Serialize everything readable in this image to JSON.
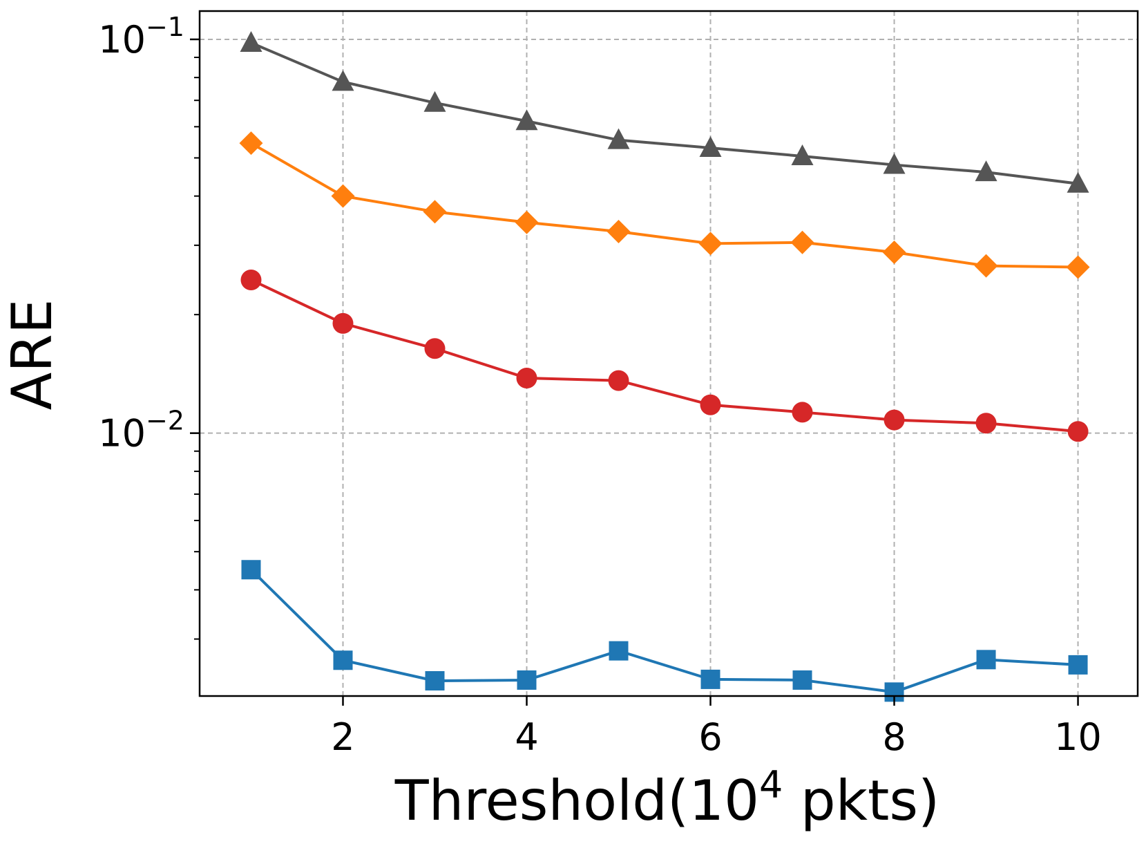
{
  "chart_data": {
    "type": "line",
    "title": "",
    "xlabel": "Threshold(10",
    "xlabel_exponent": "4",
    "xlabel_suffix": " pkts)",
    "ylabel": "ARE",
    "yscale": "log",
    "xlim": [
      0.44,
      10.65
    ],
    "ylim": [
      0.00215,
      0.118
    ],
    "grid": true,
    "x": [
      1,
      2,
      3,
      4,
      5,
      6,
      7,
      8,
      9,
      10
    ],
    "x_ticks": [
      2,
      4,
      6,
      8,
      10
    ],
    "x_tick_labels": [
      "2",
      "4",
      "6",
      "8",
      "10"
    ],
    "y_major_ticks": [
      0.01,
      0.1
    ],
    "y_tick_labels": [
      {
        "value": 0.1,
        "base": "10",
        "exponent": "−1"
      },
      {
        "value": 0.01,
        "base": "10",
        "exponent": "−2"
      }
    ],
    "y_minor_ticks": [
      0.003,
      0.004,
      0.005,
      0.006,
      0.007,
      0.008,
      0.009,
      0.02,
      0.03,
      0.04,
      0.05,
      0.06,
      0.07,
      0.08,
      0.09
    ],
    "series": [
      {
        "name": "gray-triangle",
        "color": "#555555",
        "marker": "triangle",
        "values": [
          0.098,
          0.078,
          0.069,
          0.062,
          0.0555,
          0.053,
          0.0505,
          0.048,
          0.046,
          0.043
        ]
      },
      {
        "name": "orange-diamond",
        "color": "#ff7f0e",
        "marker": "diamond",
        "values": [
          0.0545,
          0.04,
          0.0365,
          0.0343,
          0.0325,
          0.0303,
          0.0305,
          0.0288,
          0.0266,
          0.0264
        ]
      },
      {
        "name": "red-circle",
        "color": "#d62728",
        "marker": "circle",
        "values": [
          0.0245,
          0.019,
          0.0164,
          0.0138,
          0.0136,
          0.0118,
          0.0113,
          0.0108,
          0.0106,
          0.0101
        ]
      },
      {
        "name": "blue-square",
        "color": "#1f77b4",
        "marker": "square",
        "values": [
          0.0045,
          0.00265,
          0.00235,
          0.00236,
          0.0028,
          0.00237,
          0.00236,
          0.0022,
          0.00266,
          0.00258
        ]
      }
    ]
  }
}
